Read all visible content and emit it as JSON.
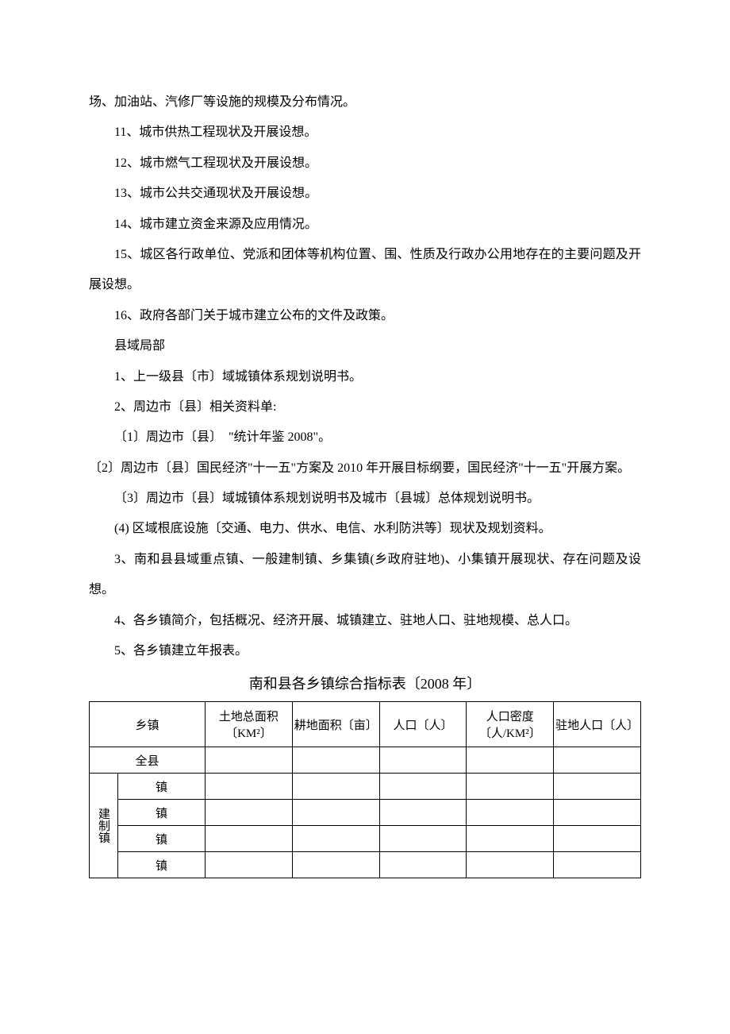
{
  "paragraphs": {
    "p0": "场、加油站、汽修厂等设施的规模及分布情况。",
    "p11": "11、城市供热工程现状及开展设想。",
    "p12": "12、城市燃气工程现状及开展设想。",
    "p13": "13、城市公共交通现状及开展设想。",
    "p14": "14、城市建立资金来源及应用情况。",
    "p15": "15、城区各行政单位、党派和团体等机构位置、围、性质及行政办公用地存在的主要问题及开展设想。",
    "p16": "16、政府各部门关于城市建立公布的文件及政策。",
    "sec": "县域局部",
    "q1": "1、上一级县〔市〕域城镇体系规划说明书。",
    "q2": "2、周边市〔县〕相关资料单:",
    "q21": "〔1〕周边市〔县〕　\"统计年鉴 2008\"。",
    "q22": "〔2〕周边市〔县〕国民经济\"十一五\"方案及 2010 年开展目标纲要，国民经济\"十一五\"开展方案。",
    "q23": "〔3〕周边市〔县〕域城镇体系规划说明书及城市〔县城〕总体规划说明书。",
    "q24": "(4) 区域根底设施〔交通、电力、供水、电信、水利防洪等〕现状及规划资料。",
    "q3": "3、南和县县域重点镇、一般建制镇、乡集镇(乡政府驻地)、小集镇开展现状、存在问题及设想。",
    "q4": "4、各乡镇简介，包括概况、经济开展、城镇建立、驻地人口、驻地规模、总人口。",
    "q5": "5、各乡镇建立年报表。"
  },
  "table": {
    "title": "南和县各乡镇综合指标表〔2008 年〕",
    "headers": {
      "town": "乡镇",
      "area": "土地总面积〔KM²〕",
      "arable": "耕地面积〔亩〕",
      "pop": "人口〔人〕",
      "dens": "人口密度〔人/KM²〕",
      "resid": "驻地人口〔人〕"
    },
    "county_row_label": "全县",
    "group_label": "建制镇",
    "town_rows": [
      "镇",
      "镇",
      "镇",
      "镇"
    ]
  }
}
